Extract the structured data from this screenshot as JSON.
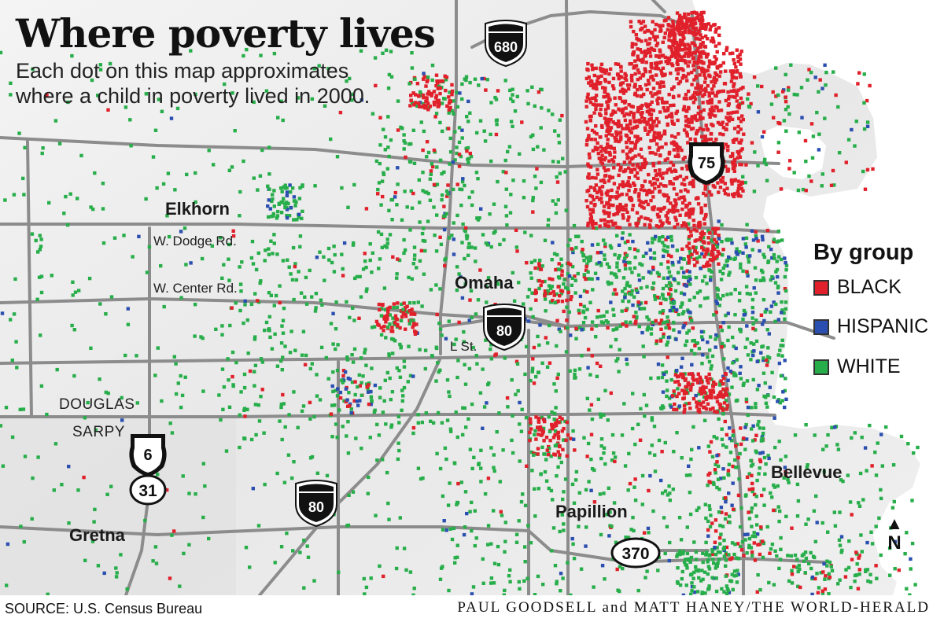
{
  "title": "Where poverty lives",
  "subtitle": "Each dot on this map approximates where a child in poverty lived in 2000.",
  "places": {
    "elkhorn": "Elkhorn",
    "omaha": "Omaha",
    "papillion": "Papillion",
    "bellevue": "Bellevue",
    "gretna": "Gretna"
  },
  "roads": {
    "dodge": "W. Dodge Rd.",
    "center": "W. Center Rd.",
    "lst": "L St."
  },
  "counties": {
    "douglas": "DOUGLAS",
    "sarpy": "SARPY"
  },
  "shields": {
    "i680": "680",
    "us75": "75",
    "i80_north": "80",
    "i80_south": "80",
    "us6": "6",
    "ne31": "31",
    "ne370": "370"
  },
  "legend": {
    "title": "By group",
    "items": [
      {
        "label": "BLACK",
        "color": "#e0202a"
      },
      {
        "label": "HISPANIC",
        "color": "#2b4fb0"
      },
      {
        "label": "WHITE",
        "color": "#27ae4a"
      }
    ]
  },
  "north_label": "N",
  "source": "SOURCE: U.S. Census Bureau",
  "credit": "PAUL GOODSELL and MATT HANEY/THE WORLD-HERALD",
  "colors": {
    "river": "#ffffff",
    "land": "#ececec",
    "sarpy_land": "#dcdcdc",
    "road": "#8a8a8a"
  }
}
